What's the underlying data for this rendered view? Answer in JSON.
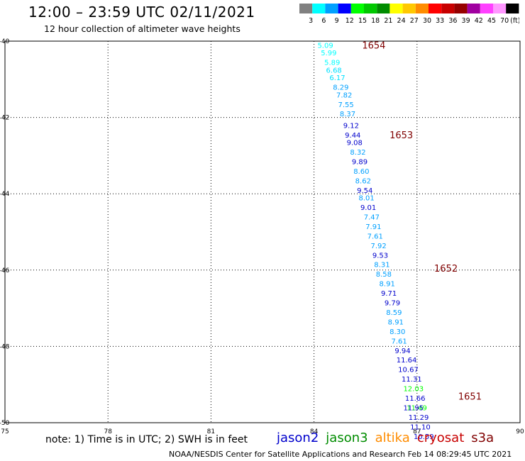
{
  "header": {
    "title": "12:00 – 23:59 UTC 02/11/2021",
    "subtitle": "12 hour collection of altimeter wave heights"
  },
  "colorbar": {
    "colors": [
      "#808080",
      "#00ffff",
      "#00a0ff",
      "#0000ff",
      "#00ff00",
      "#00c800",
      "#008c00",
      "#ffff00",
      "#ffc800",
      "#ff8c00",
      "#ff0000",
      "#c80000",
      "#960000",
      "#a000a0",
      "#ff40ff",
      "#ff96ff",
      "#000000"
    ],
    "labels": [
      "3",
      "6",
      "9",
      "12",
      "15",
      "18",
      "21",
      "24",
      "27",
      "30",
      "33",
      "36",
      "39",
      "42",
      "45",
      "70",
      "(ft)"
    ]
  },
  "chart_data": {
    "type": "scatter",
    "xlim": [
      75,
      90
    ],
    "ylim": [
      -50,
      -40
    ],
    "x_ticks": [
      "75",
      "78",
      "81",
      "84",
      "87",
      "90"
    ],
    "x_tick_values": [
      75,
      78,
      81,
      84,
      87,
      90
    ],
    "y_ticks": [
      "-40",
      "-42",
      "-44",
      "-46",
      "-48",
      "-50"
    ],
    "y_tick_values": [
      -40,
      -42,
      -44,
      -46,
      -48,
      -50
    ],
    "grid": true,
    "hour_labels": [
      {
        "x": 85.4,
        "y": -40.1,
        "text": "1654"
      },
      {
        "x": 86.2,
        "y": -42.45,
        "text": "1653"
      },
      {
        "x": 87.5,
        "y": -45.95,
        "text": "1652"
      },
      {
        "x": 88.2,
        "y": -49.3,
        "text": "1651"
      }
    ],
    "points": [
      {
        "x": 84.1,
        "y": -40.1,
        "v": "5.09",
        "c": "#00ffff"
      },
      {
        "x": 84.2,
        "y": -40.3,
        "v": "5.99",
        "c": "#00ffff"
      },
      {
        "x": 84.3,
        "y": -40.55,
        "v": "5.89",
        "c": "#00ffff"
      },
      {
        "x": 84.35,
        "y": -40.75,
        "v": "6.68",
        "c": "#00e0ff"
      },
      {
        "x": 84.45,
        "y": -40.95,
        "v": "6.17",
        "c": "#00e0ff"
      },
      {
        "x": 84.55,
        "y": -41.2,
        "v": "8.29",
        "c": "#00a0ff"
      },
      {
        "x": 84.65,
        "y": -41.4,
        "v": "7.82",
        "c": "#00a0ff"
      },
      {
        "x": 84.7,
        "y": -41.65,
        "v": "7.55",
        "c": "#00a0ff"
      },
      {
        "x": 84.75,
        "y": -41.9,
        "v": "8.37",
        "c": "#00a0ff"
      },
      {
        "x": 84.85,
        "y": -42.2,
        "v": "9.12",
        "c": "#0000cc"
      },
      {
        "x": 84.9,
        "y": -42.45,
        "v": "9.44",
        "c": "#0000cc"
      },
      {
        "x": 84.95,
        "y": -42.65,
        "v": "9.08",
        "c": "#0000cc"
      },
      {
        "x": 85.05,
        "y": -42.9,
        "v": "8.32",
        "c": "#00a0ff"
      },
      {
        "x": 85.1,
        "y": -43.15,
        "v": "9.89",
        "c": "#0000cc"
      },
      {
        "x": 85.15,
        "y": -43.4,
        "v": "8.60",
        "c": "#00a0ff"
      },
      {
        "x": 85.2,
        "y": -43.65,
        "v": "8.62",
        "c": "#00a0ff"
      },
      {
        "x": 85.25,
        "y": -43.9,
        "v": "9.54",
        "c": "#0000cc"
      },
      {
        "x": 85.3,
        "y": -44.1,
        "v": "8.01",
        "c": "#00a0ff"
      },
      {
        "x": 85.35,
        "y": -44.35,
        "v": "9.01",
        "c": "#0000cc"
      },
      {
        "x": 85.45,
        "y": -44.6,
        "v": "7.47",
        "c": "#00a0ff"
      },
      {
        "x": 85.5,
        "y": -44.85,
        "v": "7.91",
        "c": "#00a0ff"
      },
      {
        "x": 85.55,
        "y": -45.1,
        "v": "7.61",
        "c": "#00a0ff"
      },
      {
        "x": 85.65,
        "y": -45.35,
        "v": "7.92",
        "c": "#00a0ff"
      },
      {
        "x": 85.7,
        "y": -45.6,
        "v": "9.53",
        "c": "#0000cc"
      },
      {
        "x": 85.75,
        "y": -45.85,
        "v": "8.31",
        "c": "#00a0ff"
      },
      {
        "x": 85.8,
        "y": -46.1,
        "v": "8.58",
        "c": "#00a0ff"
      },
      {
        "x": 85.9,
        "y": -46.35,
        "v": "8.91",
        "c": "#00a0ff"
      },
      {
        "x": 85.95,
        "y": -46.6,
        "v": "9.71",
        "c": "#0000cc"
      },
      {
        "x": 86.05,
        "y": -46.85,
        "v": "9.79",
        "c": "#0000cc"
      },
      {
        "x": 86.1,
        "y": -47.1,
        "v": "8.59",
        "c": "#00a0ff"
      },
      {
        "x": 86.15,
        "y": -47.35,
        "v": "8.91",
        "c": "#00a0ff"
      },
      {
        "x": 86.2,
        "y": -47.6,
        "v": "8.30",
        "c": "#00a0ff"
      },
      {
        "x": 86.25,
        "y": -47.85,
        "v": "7.61",
        "c": "#00a0ff"
      },
      {
        "x": 86.35,
        "y": -48.1,
        "v": "9.94",
        "c": "#0000cc"
      },
      {
        "x": 86.4,
        "y": -48.35,
        "v": "11.64",
        "c": "#0000cc"
      },
      {
        "x": 86.45,
        "y": -48.6,
        "v": "10.67",
        "c": "#0000cc"
      },
      {
        "x": 86.55,
        "y": -48.85,
        "v": "11.31",
        "c": "#0000cc"
      },
      {
        "x": 86.6,
        "y": -49.1,
        "v": "12.03",
        "c": "#00ff00"
      },
      {
        "x": 86.65,
        "y": -49.35,
        "v": "11.66",
        "c": "#0000cc"
      },
      {
        "x": 86.7,
        "y": -49.6,
        "v": "11.49",
        "c": "#00ff00"
      },
      {
        "x": 86.6,
        "y": -49.6,
        "v": "11.95",
        "c": "#0000cc"
      },
      {
        "x": 86.75,
        "y": -49.85,
        "v": "11.29",
        "c": "#0000cc"
      },
      {
        "x": 86.8,
        "y": -50.1,
        "v": "11.10",
        "c": "#0000cc"
      },
      {
        "x": 86.9,
        "y": -50.35,
        "v": "10.59",
        "c": "#0000cc"
      }
    ]
  },
  "footer": {
    "note": "note: 1) Time is in UTC; 2) SWH is in feet",
    "credit": "NOAA/NESDIS Center for Satellite Applications and Research    Feb 14 08:29:45 UTC 2021",
    "satellites": [
      {
        "name": "jason2",
        "color": "#0000cc"
      },
      {
        "name": "jason3",
        "color": "#008c00"
      },
      {
        "name": "altika",
        "color": "#ff8c00"
      },
      {
        "name": "cryosat",
        "color": "#c80000"
      },
      {
        "name": "s3a",
        "color": "#800000"
      }
    ]
  }
}
